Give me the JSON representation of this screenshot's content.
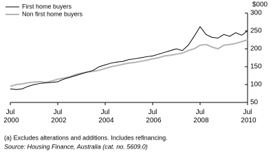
{
  "chart_data": {
    "type": "line",
    "y_label": "$000",
    "x": [
      2000.5,
      2000.75,
      2001,
      2001.25,
      2001.5,
      2001.75,
      2002,
      2002.25,
      2002.5,
      2002.75,
      2003,
      2003.25,
      2003.5,
      2003.75,
      2004,
      2004.25,
      2004.5,
      2004.75,
      2005,
      2005.25,
      2005.5,
      2005.75,
      2006,
      2006.25,
      2006.5,
      2006.75,
      2007,
      2007.25,
      2007.5,
      2007.75,
      2008,
      2008.25,
      2008.5,
      2008.75,
      2009,
      2009.25,
      2009.5,
      2009.75,
      2010,
      2010.25,
      2010.5
    ],
    "series": [
      {
        "name": "First home buyers",
        "color": "#000000",
        "values": [
          88,
          86,
          88,
          95,
          100,
          103,
          105,
          106,
          108,
          115,
          120,
          125,
          130,
          135,
          140,
          150,
          155,
          160,
          163,
          165,
          170,
          172,
          175,
          178,
          180,
          185,
          190,
          195,
          200,
          195,
          210,
          235,
          262,
          240,
          232,
          230,
          240,
          235,
          245,
          238,
          250
        ]
      },
      {
        "name": "Non first home buyers",
        "color": "#b3b3b3",
        "values": [
          95,
          100,
          102,
          105,
          107,
          108,
          106,
          110,
          115,
          118,
          122,
          128,
          132,
          135,
          137,
          140,
          145,
          150,
          153,
          157,
          160,
          162,
          165,
          168,
          172,
          175,
          180,
          182,
          185,
          188,
          195,
          200,
          210,
          212,
          205,
          200,
          210,
          212,
          215,
          220,
          225
        ]
      }
    ],
    "xlim": [
      2000.5,
      2010.5
    ],
    "xticks": [
      {
        "value": 2000.5,
        "label": "Jul 2000"
      },
      {
        "value": 2002.5,
        "label": "Jul 2002"
      },
      {
        "value": 2004.5,
        "label": "Jul 2004"
      },
      {
        "value": 2006.5,
        "label": "Jul 2006"
      },
      {
        "value": 2008.5,
        "label": "Jul 2008"
      },
      {
        "value": 2010.5,
        "label": "Jul 2010"
      }
    ],
    "ylim": [
      50,
      300
    ],
    "yticks": [
      50,
      100,
      150,
      200,
      250,
      300
    ],
    "legend": "top-left",
    "notes": [
      "(a) Excludes alterations and additions. Includes refinancing.",
      "Source: Housing Finance, Australia (cat. no. 5609.0)"
    ]
  }
}
